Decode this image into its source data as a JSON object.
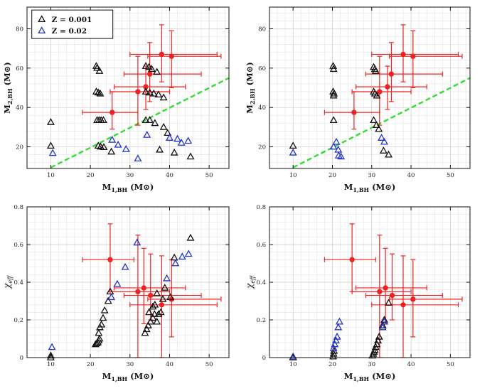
{
  "chart_data": [
    {
      "id": "a",
      "type": "scatter",
      "xlabel": "M",
      "xlabel_sub": "1,BH",
      "xlabel_unit": "(M⊙)",
      "ylabel": "M",
      "ylabel_sub": "2,BH",
      "ylabel_unit": "(M⊙)",
      "xlim": [
        4,
        55
      ],
      "ylim": [
        9,
        91
      ],
      "xticks": [
        10,
        20,
        30,
        40,
        50
      ],
      "yticks": [
        20,
        40,
        60,
        80
      ],
      "reference_line": {
        "style": "dashed",
        "color": "#33dd33",
        "points": [
          [
            10,
            9.5
          ],
          [
            55,
            55
          ]
        ]
      },
      "legend": {
        "position": "top-left",
        "entries": [
          {
            "label": "Z = 0.001",
            "color": "#111111",
            "marker": "triangle"
          },
          {
            "label": "Z = 0.02",
            "color": "#2233cc",
            "marker": "triangle"
          }
        ]
      },
      "series": [
        {
          "name": "Z = 0.001",
          "color": "#111111",
          "marker": "triangle",
          "points": [
            [
              10,
              20.5
            ],
            [
              10,
              32.5
            ],
            [
              21.5,
              61
            ],
            [
              21.7,
              60
            ],
            [
              22.3,
              58.5
            ],
            [
              21.5,
              48
            ],
            [
              22,
              47.5
            ],
            [
              22.5,
              47
            ],
            [
              21.7,
              33.5
            ],
            [
              22.2,
              33.5
            ],
            [
              22.7,
              33.5
            ],
            [
              23.3,
              33.5
            ],
            [
              22,
              20.5
            ],
            [
              22.6,
              20
            ],
            [
              23.4,
              19.8
            ],
            [
              25.3,
              17.5
            ],
            [
              34,
              61
            ],
            [
              34.8,
              60.5
            ],
            [
              35.5,
              59.5
            ],
            [
              36.8,
              58
            ],
            [
              34,
              48
            ],
            [
              35,
              47.5
            ],
            [
              36,
              47
            ],
            [
              37.2,
              46.5
            ],
            [
              38.5,
              45
            ],
            [
              34,
              33.5
            ],
            [
              35,
              33.5
            ],
            [
              36.3,
              32
            ],
            [
              38.5,
              30
            ],
            [
              39.5,
              27
            ],
            [
              37.5,
              18.5
            ],
            [
              41.2,
              17
            ],
            [
              45.3,
              15
            ]
          ]
        },
        {
          "name": "Z = 0.02",
          "color": "#2233cc",
          "marker": "triangle",
          "points": [
            [
              10.5,
              16.8
            ],
            [
              25.5,
              23.5
            ],
            [
              27,
              21
            ],
            [
              29,
              18.8
            ],
            [
              32,
              14
            ],
            [
              34.3,
              26
            ],
            [
              40,
              24.5
            ],
            [
              42,
              24
            ],
            [
              43,
              22
            ],
            [
              44.7,
              23
            ]
          ]
        }
      ],
      "observations": {
        "color": "#ee2222",
        "points": [
          {
            "x": 25.5,
            "y": 37.5,
            "xerr": [
              18,
              32
            ],
            "yerr": [
              29,
              48
            ]
          },
          {
            "x": 32,
            "y": 48,
            "xerr": [
              25,
              40
            ],
            "yerr": [
              31,
              66
            ]
          },
          {
            "x": 35,
            "y": 57,
            "xerr": [
              28.5,
              48
            ],
            "yerr": [
              43,
              73
            ]
          },
          {
            "x": 34,
            "y": 50.5,
            "xerr": [
              26,
              44
            ],
            "yerr": [
              39,
              61
            ]
          },
          {
            "x": 38,
            "y": 67,
            "xerr": [
              30,
              52
            ],
            "yerr": [
              53,
              82
            ]
          },
          {
            "x": 40.5,
            "y": 66,
            "xerr": [
              34.5,
              53
            ],
            "yerr": [
              50,
              79
            ]
          }
        ]
      }
    },
    {
      "id": "b",
      "type": "scatter",
      "xlabel": "M",
      "xlabel_sub": "1,BH",
      "xlabel_unit": "(M⊙)",
      "ylabel": "M",
      "ylabel_sub": "2,BH",
      "ylabel_unit": "(M⊙)",
      "xlim": [
        4,
        55
      ],
      "ylim": [
        9,
        91
      ],
      "xticks": [
        10,
        20,
        30,
        40,
        50
      ],
      "yticks": [
        20,
        40,
        60,
        80
      ],
      "reference_line": {
        "style": "dashed",
        "color": "#33dd33",
        "points": [
          [
            10,
            9.5
          ],
          [
            55,
            55
          ]
        ]
      },
      "series": [
        {
          "name": "Z = 0.001",
          "color": "#111111",
          "marker": "triangle",
          "points": [
            [
              10,
              20.5
            ],
            [
              20.2,
              61
            ],
            [
              20.3,
              59.5
            ],
            [
              20.2,
              48
            ],
            [
              20.4,
              47
            ],
            [
              20.3,
              46
            ],
            [
              20.3,
              33.5
            ],
            [
              30.5,
              60.5
            ],
            [
              30.8,
              59.5
            ],
            [
              31,
              58.5
            ],
            [
              30.5,
              48
            ],
            [
              30.8,
              47
            ],
            [
              31.3,
              46
            ],
            [
              30.5,
              33.5
            ],
            [
              31.2,
              31
            ],
            [
              31.8,
              29
            ],
            [
              33,
              18
            ],
            [
              34.3,
              16
            ]
          ]
        },
        {
          "name": "Z = 0.02",
          "color": "#2233cc",
          "marker": "triangle",
          "points": [
            [
              10,
              17
            ],
            [
              20.3,
              20
            ],
            [
              21,
              22.5
            ],
            [
              21.5,
              18.5
            ],
            [
              21.6,
              15.5
            ],
            [
              22.2,
              15
            ],
            [
              32.5,
              24.5
            ],
            [
              33.2,
              22.5
            ]
          ]
        }
      ],
      "observations": {
        "color": "#ee2222",
        "points": [
          {
            "x": 25.5,
            "y": 37.5,
            "xerr": [
              18,
              32
            ],
            "yerr": [
              29,
              48
            ]
          },
          {
            "x": 32,
            "y": 48,
            "xerr": [
              25,
              40
            ],
            "yerr": [
              31,
              66
            ]
          },
          {
            "x": 35,
            "y": 57,
            "xerr": [
              28.5,
              48
            ],
            "yerr": [
              43,
              73
            ]
          },
          {
            "x": 34,
            "y": 50.5,
            "xerr": [
              26,
              44
            ],
            "yerr": [
              39,
              61
            ]
          },
          {
            "x": 38,
            "y": 67,
            "xerr": [
              30,
              52
            ],
            "yerr": [
              53,
              82
            ]
          },
          {
            "x": 40.5,
            "y": 66,
            "xerr": [
              34.5,
              53
            ],
            "yerr": [
              50,
              79
            ]
          }
        ]
      }
    },
    {
      "id": "c",
      "type": "scatter",
      "xlabel": "M",
      "xlabel_sub": "1,BH",
      "xlabel_unit": "(M⊙)",
      "ylabel": "χ",
      "ylabel_sub": "eff",
      "ylabel_unit": "",
      "xlim": [
        4,
        55
      ],
      "ylim": [
        0,
        0.8
      ],
      "xticks": [
        10,
        20,
        30,
        40,
        50
      ],
      "yticks": [
        0,
        0.2,
        0.4,
        0.6,
        0.8
      ],
      "series": [
        {
          "name": "Z = 0.001",
          "color": "#111111",
          "marker": "triangle",
          "points": [
            [
              10,
              0.0
            ],
            [
              10,
              0.01
            ],
            [
              21.3,
              0.07
            ],
            [
              21.6,
              0.075
            ],
            [
              21.9,
              0.08
            ],
            [
              22.1,
              0.09
            ],
            [
              22.3,
              0.1
            ],
            [
              22.1,
              0.13
            ],
            [
              22.4,
              0.16
            ],
            [
              22.8,
              0.175
            ],
            [
              23.2,
              0.21
            ],
            [
              23.6,
              0.25
            ],
            [
              24.5,
              0.3
            ],
            [
              25,
              0.35
            ],
            [
              33.8,
              0.13
            ],
            [
              34.2,
              0.15
            ],
            [
              34.6,
              0.17
            ],
            [
              35.2,
              0.19
            ],
            [
              35.8,
              0.21
            ],
            [
              36.2,
              0.23
            ],
            [
              34.8,
              0.24
            ],
            [
              35.8,
              0.27
            ],
            [
              36.3,
              0.28
            ],
            [
              37.2,
              0.23
            ],
            [
              36.8,
              0.19
            ],
            [
              37.8,
              0.24
            ],
            [
              36.8,
              0.34
            ],
            [
              38.3,
              0.31
            ],
            [
              38.8,
              0.37
            ],
            [
              40.2,
              0.32
            ],
            [
              41.2,
              0.53
            ],
            [
              45.3,
              0.635
            ]
          ]
        },
        {
          "name": "Z = 0.02",
          "color": "#2233cc",
          "marker": "triangle",
          "points": [
            [
              10.3,
              0.055
            ],
            [
              25.3,
              0.32
            ],
            [
              26.8,
              0.39
            ],
            [
              28.8,
              0.48
            ],
            [
              31.8,
              0.61
            ],
            [
              39.3,
              0.42
            ],
            [
              41.5,
              0.5
            ],
            [
              43.2,
              0.535
            ],
            [
              44.8,
              0.55
            ]
          ]
        }
      ],
      "observations": {
        "color": "#ee2222",
        "points": [
          {
            "x": 25,
            "y": 0.52,
            "xerr": [
              18,
              31
            ],
            "yerr": [
              0.35,
              0.71
            ]
          },
          {
            "x": 32,
            "y": 0.35,
            "xerr": [
              25,
              40
            ],
            "yerr": [
              0,
              0.65
            ]
          },
          {
            "x": 33.5,
            "y": 0.37,
            "xerr": [
              26,
              44
            ],
            "yerr": [
              0.18,
              0.58
            ]
          },
          {
            "x": 35.2,
            "y": 0.33,
            "xerr": [
              28.5,
              48
            ],
            "yerr": [
              0.2,
              0.55
            ]
          },
          {
            "x": 38,
            "y": 0.28,
            "xerr": [
              30,
              52
            ],
            "yerr": [
              0,
              0.54
            ]
          },
          {
            "x": 40.5,
            "y": 0.31,
            "xerr": [
              34.5,
              53
            ],
            "yerr": [
              0.11,
              0.52
            ]
          }
        ]
      }
    },
    {
      "id": "d",
      "type": "scatter",
      "xlabel": "M",
      "xlabel_sub": "1,BH",
      "xlabel_unit": "(M⊙)",
      "ylabel": "χ",
      "ylabel_sub": "eff",
      "ylabel_unit": "",
      "xlim": [
        4,
        55
      ],
      "ylim": [
        0,
        0.8
      ],
      "xticks": [
        10,
        20,
        30,
        40,
        50
      ],
      "yticks": [
        0,
        0.2,
        0.4,
        0.6,
        0.8
      ],
      "series": [
        {
          "name": "Z = 0.001",
          "color": "#111111",
          "marker": "triangle",
          "points": [
            [
              10,
              0.0
            ],
            [
              20.2,
              0.005
            ],
            [
              20.3,
              0.02
            ],
            [
              20.4,
              0.035
            ],
            [
              30.2,
              0.01
            ],
            [
              30.4,
              0.02
            ],
            [
              30.6,
              0.03
            ],
            [
              30.8,
              0.04
            ],
            [
              31,
              0.055
            ],
            [
              31.3,
              0.07
            ],
            [
              31.6,
              0.09
            ],
            [
              31.9,
              0.11
            ],
            [
              32.8,
              0.17
            ],
            [
              33.2,
              0.2
            ],
            [
              34.3,
              0.29
            ]
          ]
        },
        {
          "name": "Z = 0.02",
          "color": "#2233cc",
          "marker": "triangle",
          "points": [
            [
              10,
              0.005
            ],
            [
              20.3,
              0.05
            ],
            [
              20.6,
              0.07
            ],
            [
              20.9,
              0.09
            ],
            [
              21.2,
              0.11
            ],
            [
              21.5,
              0.16
            ],
            [
              21.8,
              0.19
            ],
            [
              32.8,
              0.16
            ],
            [
              33.2,
              0.19
            ]
          ]
        }
      ],
      "observations": {
        "color": "#ee2222",
        "points": [
          {
            "x": 25,
            "y": 0.52,
            "xerr": [
              18,
              31
            ],
            "yerr": [
              0.35,
              0.71
            ]
          },
          {
            "x": 32,
            "y": 0.35,
            "xerr": [
              25,
              40
            ],
            "yerr": [
              0,
              0.65
            ]
          },
          {
            "x": 33.5,
            "y": 0.37,
            "xerr": [
              26,
              44
            ],
            "yerr": [
              0.18,
              0.58
            ]
          },
          {
            "x": 35.2,
            "y": 0.33,
            "xerr": [
              28.5,
              48
            ],
            "yerr": [
              0.2,
              0.55
            ]
          },
          {
            "x": 38,
            "y": 0.28,
            "xerr": [
              30,
              52
            ],
            "yerr": [
              0,
              0.54
            ]
          },
          {
            "x": 40.5,
            "y": 0.31,
            "xerr": [
              34.5,
              53
            ],
            "yerr": [
              0.11,
              0.52
            ]
          }
        ]
      }
    }
  ]
}
